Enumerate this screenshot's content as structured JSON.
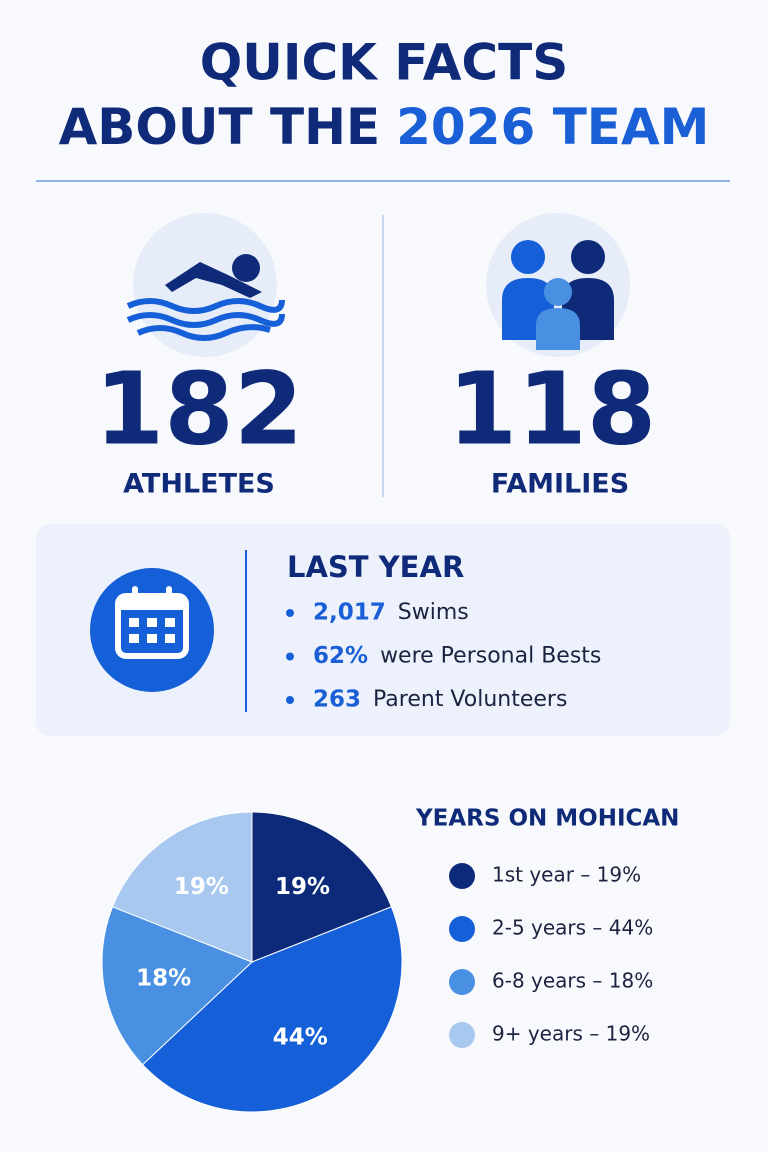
{
  "header": {
    "title_parts": [
      "QUICK FACTS",
      "ABOUT THE",
      "2026 TEAM"
    ]
  },
  "stats": [
    {
      "number": 182,
      "label": "ATHLETES"
    },
    {
      "number": 118,
      "label": "FAMILIES"
    }
  ],
  "last_year": {
    "title": "LAST YEAR",
    "items": [
      {
        "value": "2,017",
        "label": "Swims"
      },
      {
        "value": "62%",
        "label": "were Personal Bests"
      },
      {
        "value": "263",
        "label": "Parent Volunteers"
      }
    ]
  },
  "chart_data": {
    "type": "pie",
    "title": "YEARS ON MOHICAN",
    "categories": [
      "1st year – 19%",
      "2-5 years – 44%",
      "6-8 years – 18%",
      "9+ years – 19%"
    ],
    "values": [
      19,
      44,
      18,
      19
    ],
    "value_labels": [
      "19%",
      "44%",
      "18%",
      "19%"
    ],
    "colors": [
      "#0d2a7a",
      "#1560d8",
      "#4a90e2",
      "#a9c8f0"
    ],
    "legend": "right"
  }
}
